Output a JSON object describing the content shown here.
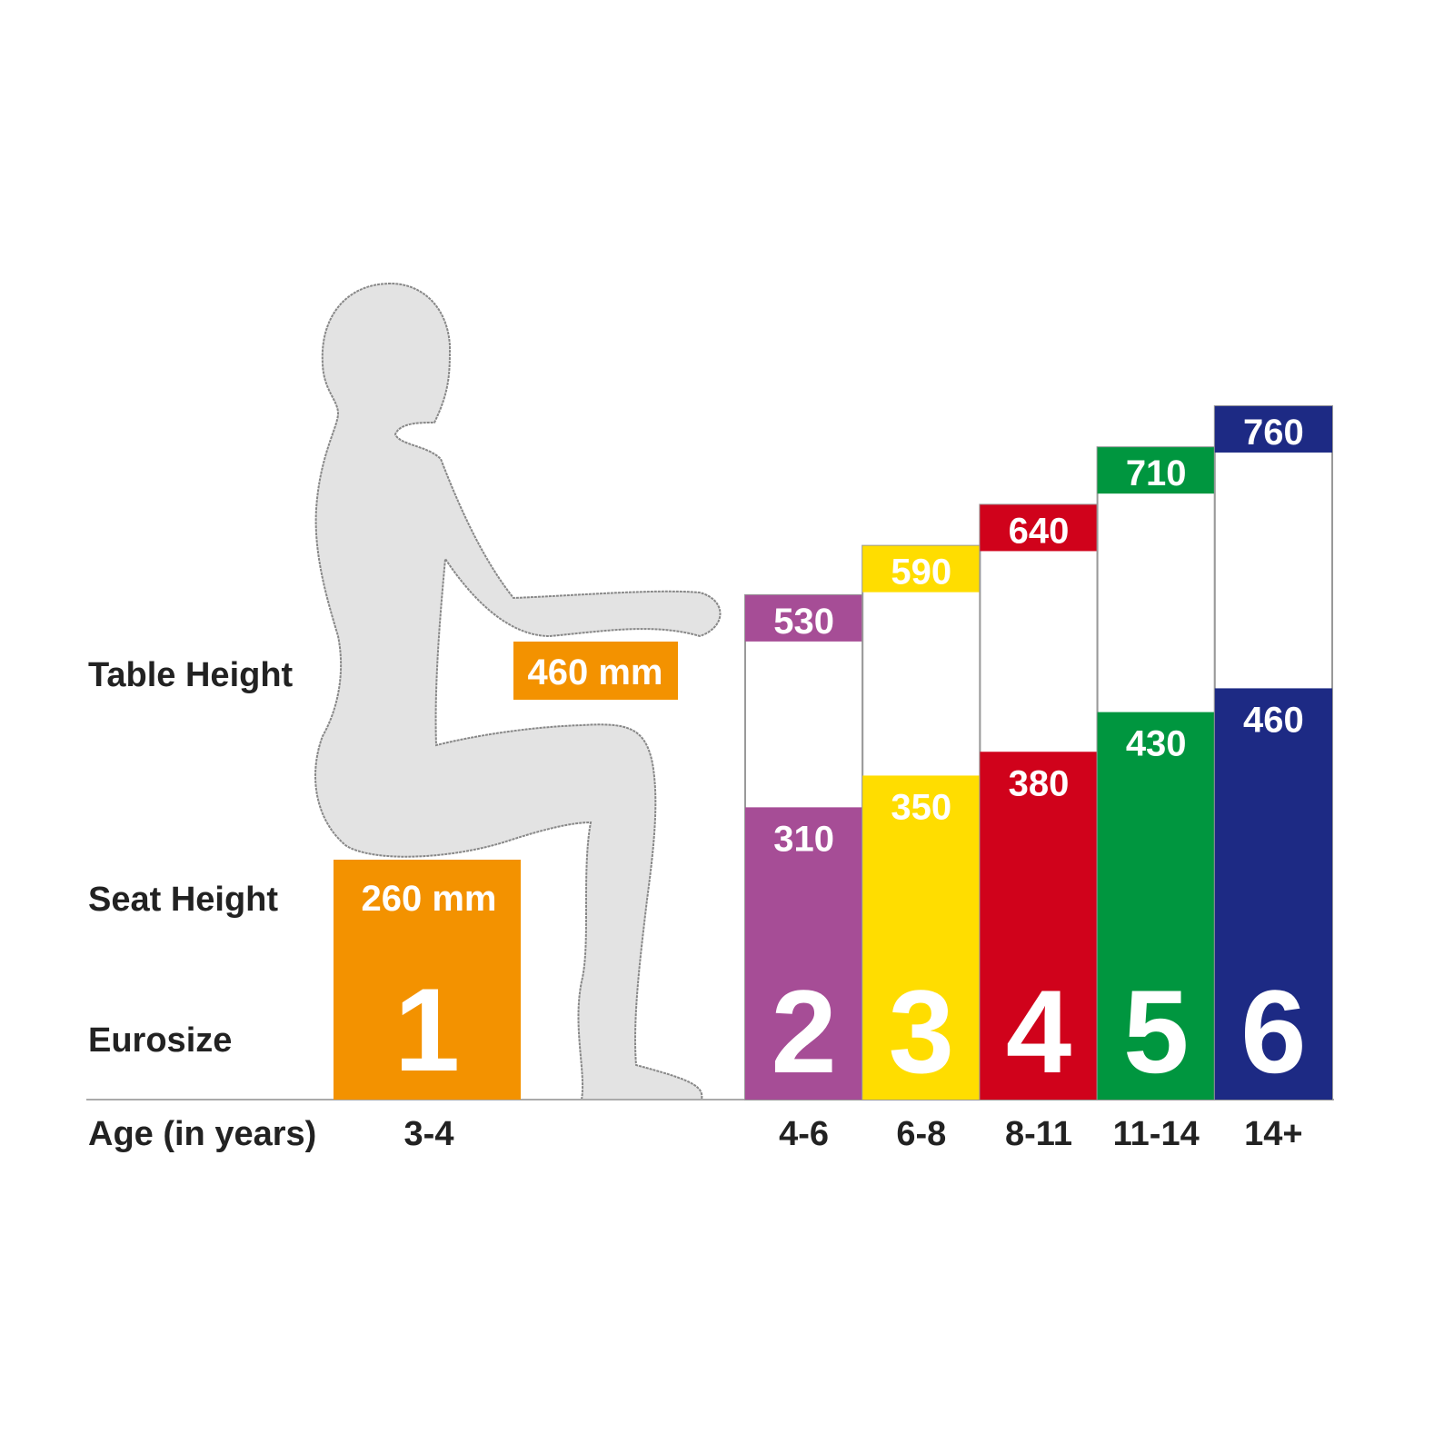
{
  "chart_data": {
    "type": "bar",
    "row_labels": {
      "table_height": "Table Height",
      "seat_height": "Seat Height",
      "eurosize": "Eurosize",
      "age": "Age (in years)"
    },
    "first_size": {
      "eurosize": "1",
      "age": "3-4",
      "seat_label": "260 mm",
      "table_label": "460 mm",
      "seat_height": 260,
      "table_height": 460,
      "color": "#f39200"
    },
    "sizes": [
      {
        "eurosize": "2",
        "age": "4-6",
        "seat_height": 310,
        "table_height": 530,
        "color": "#a64d96"
      },
      {
        "eurosize": "3",
        "age": "6-8",
        "seat_height": 350,
        "table_height": 590,
        "color": "#ffdd00"
      },
      {
        "eurosize": "4",
        "age": "8-11",
        "seat_height": 380,
        "table_height": 640,
        "color": "#d0021b"
      },
      {
        "eurosize": "5",
        "age": "11-14",
        "seat_height": 430,
        "table_height": 710,
        "color": "#00963f"
      },
      {
        "eurosize": "6",
        "age": "14+",
        "seat_height": 460,
        "table_height": 760,
        "color": "#1d2a84"
      }
    ],
    "figure_color": "#e3e3e3"
  }
}
